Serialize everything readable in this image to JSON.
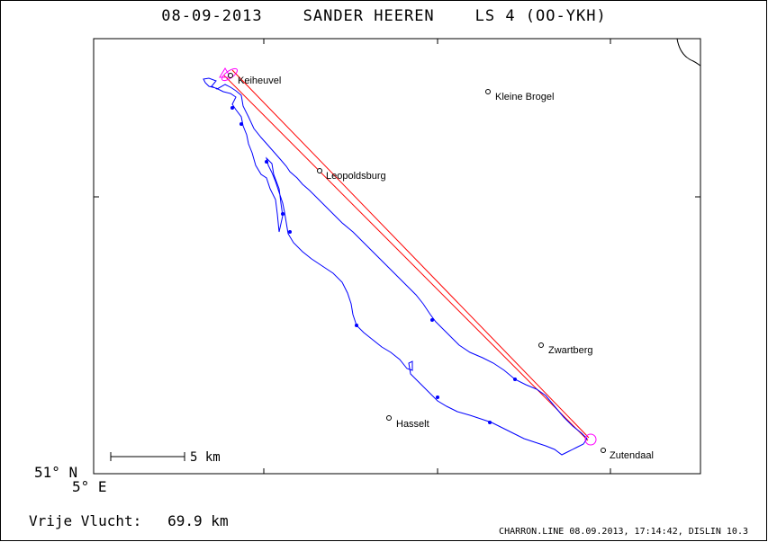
{
  "header": {
    "date": "08-09-2013",
    "pilot": "SANDER HEEREN",
    "glider": "LS 4 (OO-YKH)"
  },
  "axes": {
    "lat_label": "51° N",
    "lon_label": "5° E"
  },
  "scale": {
    "label": "5 km"
  },
  "places": [
    {
      "name": "Keiheuvel"
    },
    {
      "name": "Kleine Brogel"
    },
    {
      "name": "Leopoldsburg"
    },
    {
      "name": "Zwartberg"
    },
    {
      "name": "Hasselt"
    },
    {
      "name": "Zutendaal"
    }
  ],
  "footer": {
    "flight_label": "Vrije Vlucht:",
    "flight_value": "69.9 km",
    "credit": "CHARRON.LINE 08.09.2013, 17:14:42, DISLIN 10.3"
  },
  "colors": {
    "track": "#0000ff",
    "task": "#ff0000",
    "marker": "#ff00ff"
  }
}
